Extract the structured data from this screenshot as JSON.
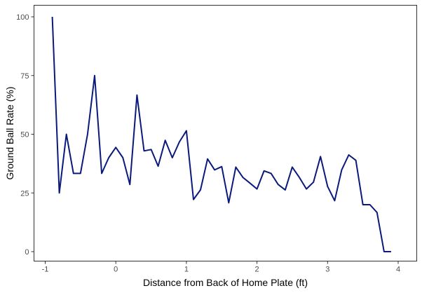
{
  "chart_data": {
    "type": "line",
    "title": "",
    "xlabel": "Distance from Back of Home Plate (ft)",
    "ylabel": "Ground Ball Rate (%)",
    "xlim": [
      -1.0,
      4.0
    ],
    "ylim": [
      0,
      100
    ],
    "xticks": [
      -1,
      0,
      1,
      2,
      3,
      4
    ],
    "xtick_labels": [
      "-1",
      "0",
      "1",
      "2",
      "3",
      "4"
    ],
    "yticks": [
      0,
      25,
      50,
      75,
      100
    ],
    "ytick_labels": [
      "0",
      "25",
      "50",
      "75",
      "100"
    ],
    "grid": false,
    "legend": "none",
    "series": [
      {
        "color": "#0a1a7a",
        "x": [
          -0.9,
          -0.8,
          -0.7,
          -0.6,
          -0.5,
          -0.4,
          -0.3,
          -0.2,
          -0.1,
          0.0,
          0.1,
          0.2,
          0.3,
          0.4,
          0.5,
          0.6,
          0.7,
          0.8,
          0.9,
          1.0,
          1.1,
          1.2,
          1.3,
          1.4,
          1.5,
          1.6,
          1.7,
          1.8,
          1.9,
          2.0,
          2.1,
          2.2,
          2.3,
          2.4,
          2.5,
          2.6,
          2.7,
          2.8,
          2.9,
          3.0,
          3.1,
          3.2,
          3.3,
          3.4,
          3.5,
          3.6,
          3.7,
          3.8,
          3.9
        ],
        "y": [
          100,
          25,
          50,
          33.3,
          33.3,
          50,
          75,
          33.3,
          40,
          44.4,
          40,
          28.6,
          66.7,
          42.9,
          43.5,
          36.4,
          47.4,
          40,
          46.7,
          51.5,
          22.2,
          26.3,
          39.5,
          34.8,
          36.2,
          20.8,
          36,
          31.6,
          29.2,
          26.7,
          34.4,
          33.3,
          28.6,
          26.3,
          36,
          31.6,
          26.7,
          29.6,
          40.5,
          27.8,
          21.7,
          34.8,
          41.2,
          38.9,
          20,
          20,
          16.7,
          0,
          0
        ]
      }
    ]
  }
}
